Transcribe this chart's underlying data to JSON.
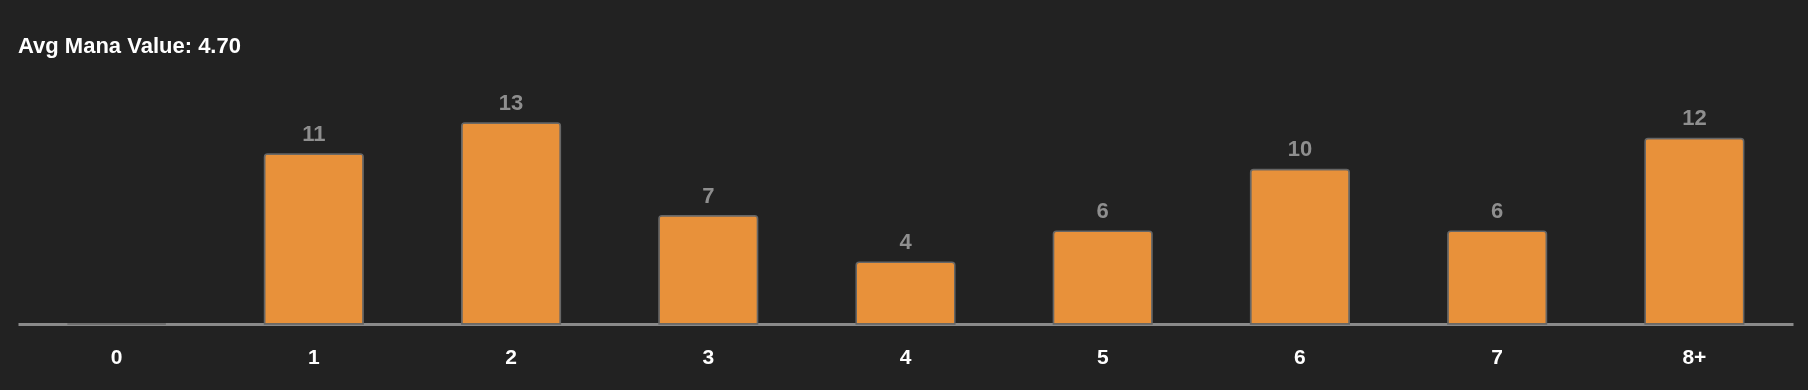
{
  "chart_data": {
    "type": "bar",
    "title": "Avg Mana Value: 4.70",
    "categories": [
      "0",
      "1",
      "2",
      "3",
      "4",
      "5",
      "6",
      "7",
      "8+"
    ],
    "values": [
      0,
      11,
      13,
      7,
      4,
      6,
      10,
      6,
      12
    ],
    "value_labels": [
      null,
      "11",
      "13",
      "7",
      "4",
      "6",
      "10",
      "6",
      "12"
    ],
    "color": "#e8913a",
    "grid": false
  }
}
